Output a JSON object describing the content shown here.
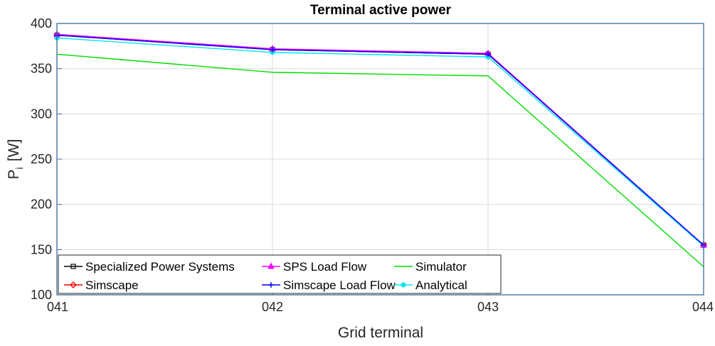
{
  "chart_data": {
    "type": "line",
    "title": "Terminal active power",
    "xlabel": "Grid terminal",
    "ylabel_main": "P",
    "ylabel_sub": "i",
    "ylabel_unit": "[W]",
    "categories": [
      "041",
      "042",
      "043",
      "044"
    ],
    "ylim": [
      100,
      400
    ],
    "yticks": [
      100,
      150,
      200,
      250,
      300,
      350,
      400
    ],
    "grid": true,
    "legend_position": "bottom-left",
    "series": [
      {
        "name": "Specialized Power Systems",
        "color": "#000000",
        "marker": "square",
        "values": [
          387,
          371,
          366,
          155
        ]
      },
      {
        "name": "SPS Load Flow",
        "color": "#ff00ff",
        "marker": "triangle",
        "values": [
          388,
          372,
          367,
          155
        ]
      },
      {
        "name": "Simulator",
        "color": "#00dd00",
        "marker": "none",
        "values": [
          366,
          346,
          342,
          131
        ]
      },
      {
        "name": "Simscape",
        "color": "#ff0000",
        "marker": "diamond",
        "values": [
          387,
          371,
          366,
          155
        ]
      },
      {
        "name": "Simscape Load Flow",
        "color": "#0000ff",
        "marker": "plus",
        "values": [
          387,
          371,
          366,
          155
        ]
      },
      {
        "name": "Analytical",
        "color": "#00e5ee",
        "marker": "dot",
        "values": [
          384,
          368,
          363,
          154
        ]
      }
    ]
  }
}
